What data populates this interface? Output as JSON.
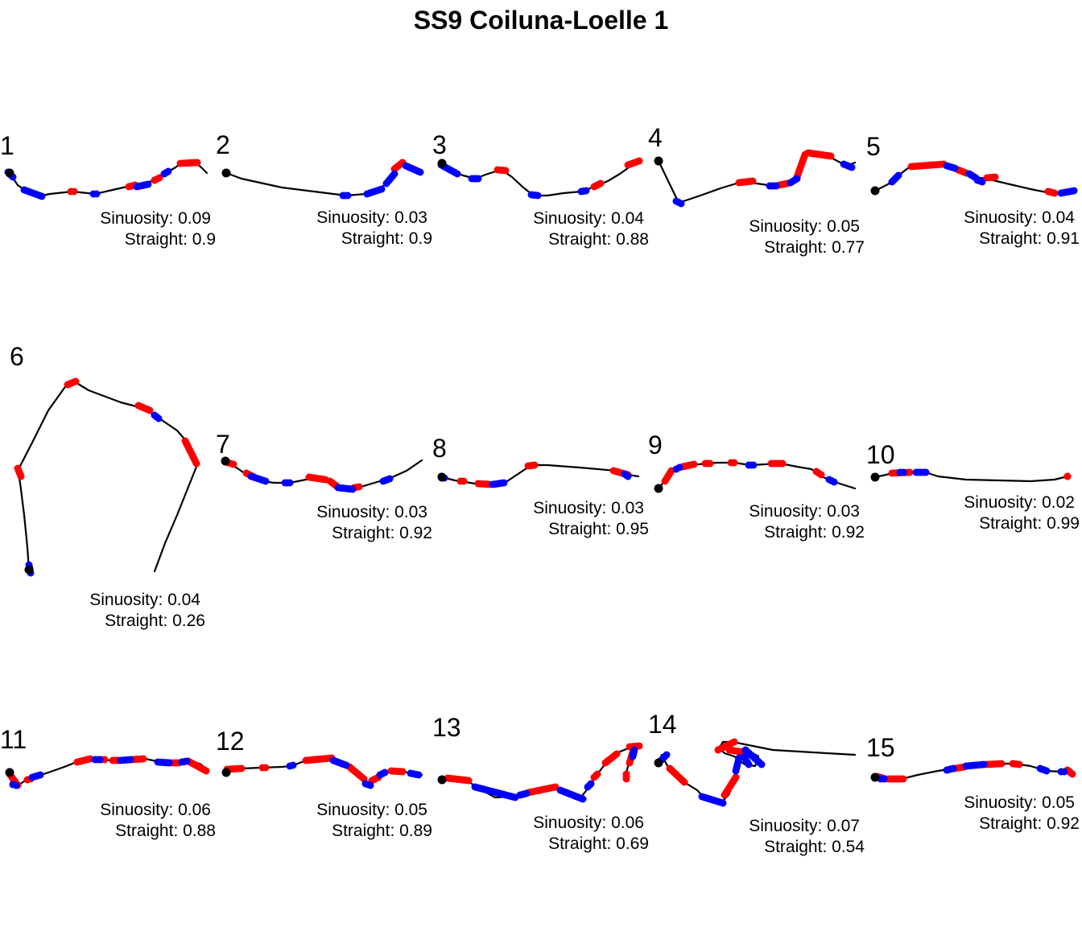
{
  "chart_data": {
    "type": "scatter",
    "title": "SS9 Coiluna-Loelle 1",
    "sinuosity_label": "Sinuosity:",
    "straight_label": "Straight:",
    "colors": {
      "path": "#000000",
      "start": "#000000",
      "red": "#ff0000",
      "blue": "#0000ff"
    },
    "panels": [
      {
        "id": "1",
        "sinuosity": 0.09,
        "straight": 0.9,
        "sinuosity_text": "0.09",
        "straight_text": "0.9"
      },
      {
        "id": "2",
        "sinuosity": 0.03,
        "straight": 0.9,
        "sinuosity_text": "0.03",
        "straight_text": "0.9"
      },
      {
        "id": "3",
        "sinuosity": 0.04,
        "straight": 0.88,
        "sinuosity_text": "0.04",
        "straight_text": "0.88"
      },
      {
        "id": "4",
        "sinuosity": 0.05,
        "straight": 0.77,
        "sinuosity_text": "0.05",
        "straight_text": "0.77"
      },
      {
        "id": "5",
        "sinuosity": 0.04,
        "straight": 0.91,
        "sinuosity_text": "0.04",
        "straight_text": "0.91"
      },
      {
        "id": "6",
        "sinuosity": 0.04,
        "straight": 0.26,
        "sinuosity_text": "0.04",
        "straight_text": "0.26"
      },
      {
        "id": "7",
        "sinuosity": 0.03,
        "straight": 0.92,
        "sinuosity_text": "0.03",
        "straight_text": "0.92"
      },
      {
        "id": "8",
        "sinuosity": 0.03,
        "straight": 0.95,
        "sinuosity_text": "0.03",
        "straight_text": "0.95"
      },
      {
        "id": "9",
        "sinuosity": 0.03,
        "straight": 0.92,
        "sinuosity_text": "0.03",
        "straight_text": "0.92"
      },
      {
        "id": "10",
        "sinuosity": 0.02,
        "straight": 0.99,
        "sinuosity_text": "0.02",
        "straight_text": "0.99"
      },
      {
        "id": "11",
        "sinuosity": 0.06,
        "straight": 0.88,
        "sinuosity_text": "0.06",
        "straight_text": "0.88"
      },
      {
        "id": "12",
        "sinuosity": 0.05,
        "straight": 0.89,
        "sinuosity_text": "0.05",
        "straight_text": "0.89"
      },
      {
        "id": "13",
        "sinuosity": 0.06,
        "straight": 0.69,
        "sinuosity_text": "0.06",
        "straight_text": "0.69"
      },
      {
        "id": "14",
        "sinuosity": 0.07,
        "straight": 0.54,
        "sinuosity_text": "0.07",
        "straight_text": "0.54"
      },
      {
        "id": "15",
        "sinuosity": 0.05,
        "straight": 0.92,
        "sinuosity_text": "0.05",
        "straight_text": "0.92"
      }
    ]
  }
}
